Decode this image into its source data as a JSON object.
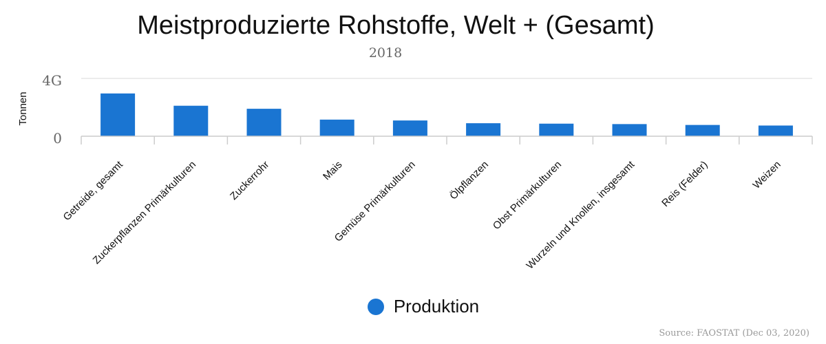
{
  "chart_data": {
    "type": "bar",
    "title": "Meistproduzierte Rohstoffe, Welt + (Gesamt)",
    "subtitle": "2018",
    "ylabel": "Tonnen",
    "yticks": [
      "0",
      "4G"
    ],
    "ylim": [
      0,
      4000000000
    ],
    "grid": true,
    "legend_position": "bottom",
    "categories": [
      "Getreide, gesamt",
      "Zuckerpflanzen Primärkulturen",
      "Zuckerrohr",
      "Mais",
      "Gemüse Primärkulturen",
      "Ölpflanzen",
      "Obst Primärkulturen",
      "Wurzeln und Knollen, insgesamt",
      "Reis (Felder)",
      "Weizen"
    ],
    "series": [
      {
        "name": "Produktion",
        "values": [
          2960000000,
          2110000000,
          1900000000,
          1150000000,
          1090000000,
          900000000,
          870000000,
          840000000,
          780000000,
          740000000
        ]
      }
    ],
    "source": "Source: FAOSTAT (Dec 03, 2020)"
  },
  "colors": {
    "bar": "#1a75d2",
    "grid": "#d8d8d8",
    "axis_text": "#666666"
  }
}
